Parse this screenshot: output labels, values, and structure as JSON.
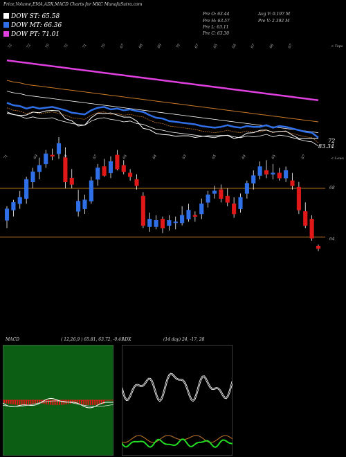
{
  "header": {
    "title": "Price,Volume,EMA,ADX,MACD Charts for MKC MunafaSutra.com"
  },
  "legend": [
    {
      "label": "DOW ST: 65.58",
      "color": "#ffffff"
    },
    {
      "label": "DOW MT: 66.36",
      "color": "#2f6fe8"
    },
    {
      "label": "DOW PT: 71.01",
      "color": "#e040e0"
    }
  ],
  "info": {
    "open": "Pre  O: 63.44",
    "high": "Pre  H: 63.57",
    "low": "Pre  L: 63.11",
    "close": "Pre  C: 63.30",
    "avg_vol": "Avg V: 0.197  M",
    "vol": "Pre  V: 2.392  M"
  },
  "ema_panel": {
    "top_right_label": "< Tops",
    "last_price_label": "83.34",
    "left_low_label": "72",
    "top_ticks": [
      "72",
      "72",
      "70",
      "72",
      "71",
      "70",
      "67",
      "68",
      "69",
      "70",
      "67",
      "65",
      "66",
      "67",
      "66",
      "67"
    ]
  },
  "price_panel": {
    "top_right_label": "< Lows",
    "top_ticks": [
      "71",
      "69",
      "68",
      "67",
      "66",
      "64",
      "63",
      "65",
      "64",
      "65",
      "67"
    ],
    "level_labels": [
      "68",
      "64"
    ]
  },
  "macd_panel": {
    "label": "MACD",
    "params": "( 12,26,9 ) 65.81, 63.72, -0.41"
  },
  "adx_panel": {
    "label": "ADX",
    "params": "(14 day) 24, -17, 28"
  },
  "chart_data": {
    "type": "candlestick",
    "series_candles": [
      {
        "o": 65.5,
        "h": 66.6,
        "l": 64.9,
        "c": 66.4,
        "up": true
      },
      {
        "o": 66.3,
        "h": 67.1,
        "l": 65.8,
        "c": 66.9,
        "up": true
      },
      {
        "o": 66.8,
        "h": 67.8,
        "l": 66.4,
        "c": 67.3,
        "up": true
      },
      {
        "o": 67.2,
        "h": 68.9,
        "l": 66.8,
        "c": 68.7,
        "up": true
      },
      {
        "o": 68.5,
        "h": 69.6,
        "l": 68.0,
        "c": 69.3,
        "up": true
      },
      {
        "o": 69.3,
        "h": 70.4,
        "l": 68.7,
        "c": 69.8,
        "up": true
      },
      {
        "o": 69.9,
        "h": 71.0,
        "l": 69.6,
        "c": 70.7,
        "up": true
      },
      {
        "o": 70.6,
        "h": 71.1,
        "l": 70.2,
        "c": 70.5,
        "up": false
      },
      {
        "o": 70.7,
        "h": 72.0,
        "l": 70.3,
        "c": 71.5,
        "up": true
      },
      {
        "o": 70.4,
        "h": 71.2,
        "l": 68.0,
        "c": 68.5,
        "up": false
      },
      {
        "o": 68.8,
        "h": 69.5,
        "l": 68.0,
        "c": 68.3,
        "up": false
      },
      {
        "o": 67.0,
        "h": 67.9,
        "l": 65.8,
        "c": 66.2,
        "up": true
      },
      {
        "o": 66.4,
        "h": 67.5,
        "l": 66.0,
        "c": 67.1,
        "up": true
      },
      {
        "o": 67.0,
        "h": 68.9,
        "l": 66.8,
        "c": 68.6,
        "up": true
      },
      {
        "o": 68.7,
        "h": 69.9,
        "l": 68.2,
        "c": 69.6,
        "up": true
      },
      {
        "o": 69.7,
        "h": 70.3,
        "l": 68.9,
        "c": 69.0,
        "up": false
      },
      {
        "o": 69.2,
        "h": 70.5,
        "l": 68.8,
        "c": 70.1,
        "up": true
      },
      {
        "o": 70.6,
        "h": 71.0,
        "l": 69.4,
        "c": 69.5,
        "up": false
      },
      {
        "o": 69.8,
        "h": 70.2,
        "l": 69.1,
        "c": 69.3,
        "up": false
      },
      {
        "o": 69.2,
        "h": 69.5,
        "l": 68.6,
        "c": 68.9,
        "up": false
      },
      {
        "o": 68.7,
        "h": 69.1,
        "l": 67.9,
        "c": 68.2,
        "up": false
      },
      {
        "o": 67.4,
        "h": 67.7,
        "l": 64.9,
        "c": 65.1,
        "up": false
      },
      {
        "o": 65.0,
        "h": 66.1,
        "l": 64.6,
        "c": 65.6,
        "up": true
      },
      {
        "o": 65.5,
        "h": 65.9,
        "l": 64.8,
        "c": 65.0,
        "up": true
      },
      {
        "o": 65.6,
        "h": 65.8,
        "l": 64.5,
        "c": 64.9,
        "up": false
      },
      {
        "o": 65.1,
        "h": 65.9,
        "l": 64.7,
        "c": 65.5,
        "up": true
      },
      {
        "o": 65.4,
        "h": 65.8,
        "l": 64.8,
        "c": 65.3,
        "up": true
      },
      {
        "o": 65.3,
        "h": 66.6,
        "l": 65.1,
        "c": 65.9,
        "up": true
      },
      {
        "o": 65.6,
        "h": 66.8,
        "l": 65.4,
        "c": 66.3,
        "up": true
      },
      {
        "o": 65.8,
        "h": 66.2,
        "l": 65.4,
        "c": 65.9,
        "up": false
      },
      {
        "o": 66.0,
        "h": 67.2,
        "l": 65.6,
        "c": 66.8,
        "up": true
      },
      {
        "o": 66.9,
        "h": 67.8,
        "l": 66.5,
        "c": 67.5,
        "up": true
      },
      {
        "o": 67.6,
        "h": 68.2,
        "l": 67.2,
        "c": 67.8,
        "up": true
      },
      {
        "o": 67.9,
        "h": 68.3,
        "l": 66.9,
        "c": 67.2,
        "up": false
      },
      {
        "o": 67.4,
        "h": 68.0,
        "l": 66.6,
        "c": 66.9,
        "up": false
      },
      {
        "o": 66.8,
        "h": 67.3,
        "l": 65.7,
        "c": 66.0,
        "up": false
      },
      {
        "o": 66.4,
        "h": 67.6,
        "l": 66.1,
        "c": 67.3,
        "up": true
      },
      {
        "o": 67.6,
        "h": 68.6,
        "l": 67.2,
        "c": 68.4,
        "up": true
      },
      {
        "o": 68.4,
        "h": 69.4,
        "l": 67.9,
        "c": 69.0,
        "up": true
      },
      {
        "o": 69.0,
        "h": 70.1,
        "l": 68.7,
        "c": 69.7,
        "up": true
      },
      {
        "o": 69.4,
        "h": 70.2,
        "l": 68.8,
        "c": 69.1,
        "up": false
      },
      {
        "o": 69.1,
        "h": 69.9,
        "l": 68.7,
        "c": 69.2,
        "up": true
      },
      {
        "o": 69.2,
        "h": 69.6,
        "l": 68.6,
        "c": 68.8,
        "up": false
      },
      {
        "o": 68.8,
        "h": 69.7,
        "l": 68.5,
        "c": 69.4,
        "up": true
      },
      {
        "o": 68.6,
        "h": 69.2,
        "l": 67.9,
        "c": 68.2,
        "up": false
      },
      {
        "o": 68.1,
        "h": 68.5,
        "l": 66.0,
        "c": 66.3,
        "up": false
      },
      {
        "o": 66.2,
        "h": 66.9,
        "l": 64.9,
        "c": 65.1,
        "up": false
      },
      {
        "o": 65.6,
        "h": 65.9,
        "l": 63.9,
        "c": 64.1,
        "up": false
      },
      {
        "o": 63.5,
        "h": 63.6,
        "l": 63.1,
        "c": 63.3,
        "up": false
      }
    ],
    "ema_close": [
      74.3,
      74.0,
      73.9,
      73.6,
      73.8,
      73.6,
      73.7,
      73.8,
      73.6,
      73.4,
      73.1,
      73.0,
      72.9,
      73.4,
      73.7,
      73.8,
      73.5,
      73.6,
      73.4,
      73.5,
      73.3,
      73.2,
      72.8,
      72.5,
      72.4,
      72.1,
      72.0,
      71.9,
      71.8,
      71.7,
      71.5,
      71.4,
      71.3,
      71.4,
      71.6,
      71.4,
      71.3,
      71.5,
      71.4,
      71.4,
      71.6,
      71.3,
      71.5,
      71.4,
      71.2,
      71.0,
      70.8,
      70.7,
      70.1
    ],
    "ema_short": [
      73.2,
      72.9,
      72.7,
      72.4,
      72.6,
      72.4,
      72.4,
      72.5,
      72.2,
      72.0,
      71.8,
      71.7,
      71.6,
      72.1,
      72.4,
      72.5,
      72.3,
      72.2,
      72.0,
      72.1,
      71.8,
      71.7,
      71.4,
      71.1,
      71.0,
      70.8,
      70.7,
      70.6,
      70.5,
      70.4,
      70.3,
      70.2,
      70.1,
      70.3,
      70.4,
      70.2,
      70.1,
      70.3,
      70.2,
      70.3,
      70.5,
      70.2,
      70.4,
      70.3,
      70.1,
      69.9,
      69.7,
      69.6,
      69.1
    ],
    "ema_mid": [
      77.0,
      76.8,
      76.7,
      76.5,
      76.4,
      76.3,
      76.2,
      76.1,
      76.0,
      75.9,
      75.8,
      75.7,
      75.6,
      75.5,
      75.4,
      75.3,
      75.2,
      75.1,
      75.0,
      74.9,
      74.8,
      74.7,
      74.6,
      74.5,
      74.4,
      74.3,
      74.2,
      74.1,
      74.0,
      73.9,
      73.8,
      73.7,
      73.6,
      73.5,
      73.4,
      73.3,
      73.2,
      73.1,
      73.0,
      72.9,
      72.8,
      72.7,
      72.6,
      72.5,
      72.4,
      72.3,
      72.2,
      72.1,
      72.0
    ],
    "ema_long": [
      79.4,
      79.3,
      79.2,
      79.1,
      79.0,
      78.9,
      78.8,
      78.7,
      78.6,
      78.5,
      78.4,
      78.3,
      78.2,
      78.1,
      78.0,
      77.9,
      77.8,
      77.7,
      77.6,
      77.5,
      77.4,
      77.3,
      77.2,
      77.1,
      77.0,
      76.9,
      76.8,
      76.7,
      76.6,
      76.5,
      76.4,
      76.3,
      76.2,
      76.1,
      76.0,
      75.9,
      75.8,
      75.7,
      75.6,
      75.5,
      75.4,
      75.3,
      75.2,
      75.1,
      75.0,
      74.9,
      74.8,
      74.7,
      74.6
    ],
    "price_lines": [
      68.0,
      64.2
    ]
  }
}
